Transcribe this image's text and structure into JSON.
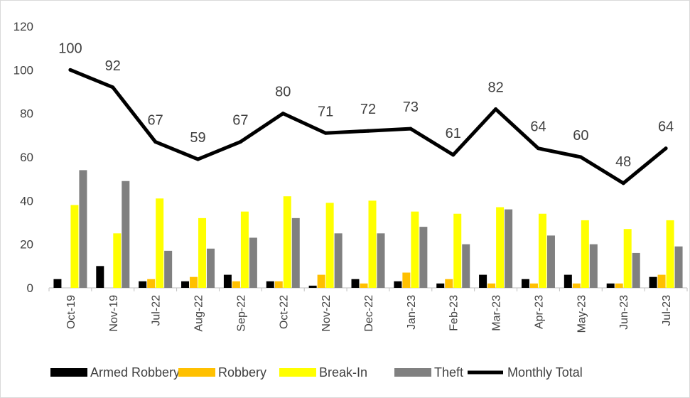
{
  "chart_data": {
    "type": "bar",
    "title": "",
    "xlabel": "",
    "ylabel": "",
    "ylim": [
      0,
      120
    ],
    "yticks": [
      0,
      20,
      40,
      60,
      80,
      100,
      120
    ],
    "categories": [
      "Oct-19",
      "Nov-19",
      "Jul-22",
      "Aug-22",
      "Sep-22",
      "Oct-22",
      "Nov-22",
      "Dec-22",
      "Jan-23",
      "Feb-23",
      "Mar-23",
      "Apr-23",
      "May-23",
      "Jun-23",
      "Jul-23"
    ],
    "series": [
      {
        "name": "Armed Robbery",
        "type": "bar",
        "color": "#000000",
        "values": [
          4,
          10,
          3,
          3,
          6,
          3,
          1,
          4,
          3,
          2,
          6,
          4,
          6,
          2,
          5
        ]
      },
      {
        "name": "Robbery",
        "type": "bar",
        "color": "#FFC000",
        "values": [
          0,
          0,
          4,
          5,
          3,
          3,
          6,
          2,
          7,
          4,
          2,
          2,
          2,
          2,
          6
        ]
      },
      {
        "name": "Break-In",
        "type": "bar",
        "color": "#FFFF00",
        "values": [
          38,
          25,
          41,
          32,
          35,
          42,
          39,
          40,
          35,
          34,
          37,
          34,
          31,
          27,
          31
        ]
      },
      {
        "name": "Theft",
        "type": "bar",
        "color": "#808080",
        "values": [
          54,
          49,
          17,
          18,
          23,
          32,
          25,
          25,
          28,
          20,
          36,
          24,
          20,
          16,
          19
        ]
      },
      {
        "name": "Monthly Total",
        "type": "line",
        "color": "#000000",
        "values": [
          100,
          92,
          67,
          59,
          67,
          80,
          71,
          72,
          73,
          61,
          82,
          64,
          60,
          48,
          64
        ]
      }
    ],
    "data_labels": [
      "100",
      "92",
      "67",
      "59",
      "67",
      "80",
      "71",
      "72",
      "73",
      "61",
      "82",
      "64",
      "60",
      "48",
      "64"
    ],
    "legend_position": "bottom",
    "grid": false
  }
}
